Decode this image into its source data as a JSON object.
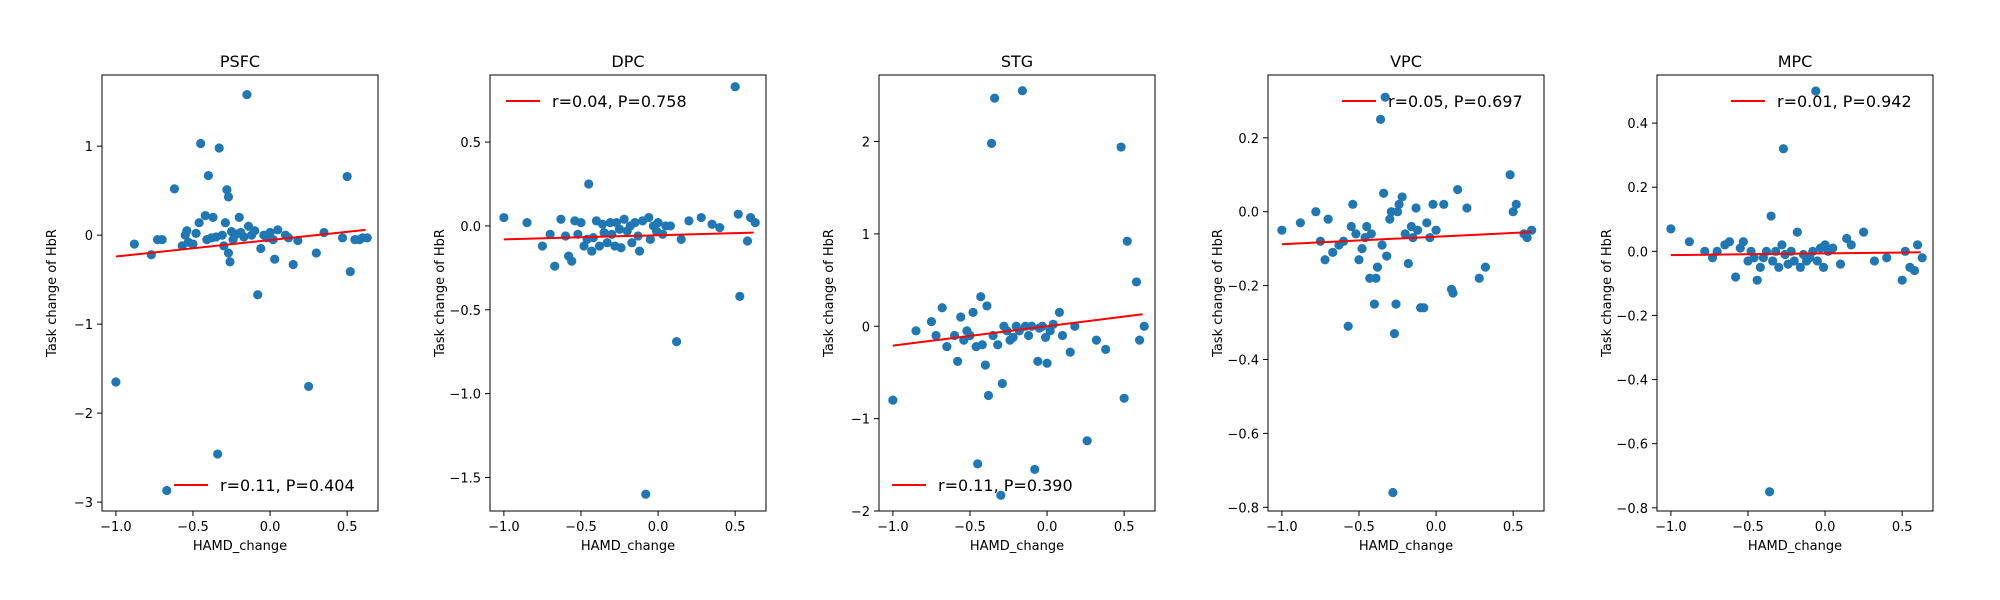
{
  "chart_data": [
    {
      "type": "scatter",
      "title": "PSFC",
      "xlabel": "HAMD_change",
      "ylabel": "Task change of HbR",
      "xlim": [
        -1.09,
        0.7
      ],
      "ylim": [
        -3.1,
        1.8
      ],
      "xticks": [
        -1.0,
        -0.5,
        0.0,
        0.5
      ],
      "xtick_labels": [
        "−1.0",
        "−0.5",
        "0.0",
        "0.5"
      ],
      "yticks": [
        -3,
        -2,
        -1,
        0,
        1
      ],
      "ytick_labels": [
        "−3",
        "−2",
        "−1",
        "0",
        "1"
      ],
      "legend": {
        "label": "r=0.11, P=0.404",
        "position": "lower right"
      },
      "fit": {
        "x": [
          -1.0,
          0.62
        ],
        "y": [
          -0.24,
          0.06
        ]
      },
      "points": [
        [
          -1.0,
          -1.65
        ],
        [
          -0.88,
          -0.1
        ],
        [
          -0.77,
          -0.22
        ],
        [
          -0.73,
          -0.05
        ],
        [
          -0.7,
          -0.05
        ],
        [
          -0.67,
          -2.87
        ],
        [
          -0.62,
          0.52
        ],
        [
          -0.57,
          -0.12
        ],
        [
          -0.55,
          0.0
        ],
        [
          -0.54,
          0.05
        ],
        [
          -0.53,
          -0.08
        ],
        [
          -0.5,
          -0.1
        ],
        [
          -0.48,
          0.02
        ],
        [
          -0.46,
          0.14
        ],
        [
          -0.45,
          1.03
        ],
        [
          -0.42,
          0.22
        ],
        [
          -0.41,
          -0.05
        ],
        [
          -0.4,
          0.67
        ],
        [
          -0.38,
          -0.03
        ],
        [
          -0.37,
          0.2
        ],
        [
          -0.35,
          -0.02
        ],
        [
          -0.34,
          -2.46
        ],
        [
          -0.33,
          0.98
        ],
        [
          -0.31,
          0.0
        ],
        [
          -0.3,
          -0.12
        ],
        [
          -0.29,
          0.14
        ],
        [
          -0.28,
          0.51
        ],
        [
          -0.27,
          0.43
        ],
        [
          -0.27,
          -0.2
        ],
        [
          -0.26,
          -0.3
        ],
        [
          -0.25,
          0.04
        ],
        [
          -0.24,
          -0.05
        ],
        [
          -0.22,
          0.01
        ],
        [
          -0.2,
          0.2
        ],
        [
          -0.19,
          0.03
        ],
        [
          -0.17,
          -0.02
        ],
        [
          -0.15,
          1.58
        ],
        [
          -0.14,
          0.1
        ],
        [
          -0.12,
          0.0
        ],
        [
          -0.1,
          0.05
        ],
        [
          -0.08,
          -0.67
        ],
        [
          -0.06,
          -0.15
        ],
        [
          -0.04,
          0.0
        ],
        [
          -0.02,
          -0.03
        ],
        [
          0.0,
          0.03
        ],
        [
          0.02,
          -0.05
        ],
        [
          0.03,
          -0.27
        ],
        [
          0.05,
          0.06
        ],
        [
          0.1,
          0.0
        ],
        [
          0.12,
          -0.03
        ],
        [
          0.15,
          -0.33
        ],
        [
          0.18,
          -0.06
        ],
        [
          0.25,
          -1.7
        ],
        [
          0.3,
          -0.2
        ],
        [
          0.35,
          0.03
        ],
        [
          0.47,
          -0.03
        ],
        [
          0.5,
          0.66
        ],
        [
          0.52,
          -0.41
        ],
        [
          0.55,
          -0.05
        ],
        [
          0.58,
          -0.05
        ],
        [
          0.6,
          -0.03
        ],
        [
          0.63,
          -0.03
        ]
      ]
    },
    {
      "type": "scatter",
      "title": "DPC",
      "xlabel": "HAMD_change",
      "ylabel": "Task change of HbR",
      "xlim": [
        -1.09,
        0.7
      ],
      "ylim": [
        -1.7,
        0.9
      ],
      "xticks": [
        -1.0,
        -0.5,
        0.0,
        0.5
      ],
      "xtick_labels": [
        "−1.0",
        "−0.5",
        "0.0",
        "0.5"
      ],
      "yticks": [
        -1.5,
        -1.0,
        -0.5,
        0.0,
        0.5
      ],
      "ytick_labels": [
        "−1.5",
        "−1.0",
        "−0.5",
        "0.0",
        "0.5"
      ],
      "legend": {
        "label": "r=0.04, P=0.758",
        "position": "upper left"
      },
      "fit": {
        "x": [
          -1.0,
          0.62
        ],
        "y": [
          -0.08,
          -0.04
        ]
      },
      "points": [
        [
          -1.0,
          0.05
        ],
        [
          -0.85,
          0.02
        ],
        [
          -0.75,
          -0.12
        ],
        [
          -0.7,
          -0.05
        ],
        [
          -0.67,
          -0.24
        ],
        [
          -0.63,
          0.04
        ],
        [
          -0.6,
          -0.06
        ],
        [
          -0.58,
          -0.18
        ],
        [
          -0.56,
          -0.21
        ],
        [
          -0.54,
          0.03
        ],
        [
          -0.52,
          -0.05
        ],
        [
          -0.5,
          0.02
        ],
        [
          -0.48,
          -0.12
        ],
        [
          -0.46,
          -0.08
        ],
        [
          -0.45,
          0.25
        ],
        [
          -0.43,
          -0.15
        ],
        [
          -0.42,
          -0.07
        ],
        [
          -0.4,
          0.03
        ],
        [
          -0.38,
          -0.12
        ],
        [
          -0.36,
          0.01
        ],
        [
          -0.35,
          -0.04
        ],
        [
          -0.33,
          -0.1
        ],
        [
          -0.31,
          0.02
        ],
        [
          -0.3,
          -0.05
        ],
        [
          -0.28,
          -0.12
        ],
        [
          -0.27,
          0.02
        ],
        [
          -0.25,
          -0.02
        ],
        [
          -0.24,
          -0.13
        ],
        [
          -0.22,
          0.04
        ],
        [
          -0.2,
          -0.03
        ],
        [
          -0.18,
          0.0
        ],
        [
          -0.17,
          -0.1
        ],
        [
          -0.15,
          0.02
        ],
        [
          -0.13,
          -0.06
        ],
        [
          -0.12,
          -0.15
        ],
        [
          -0.1,
          0.03
        ],
        [
          -0.08,
          -1.6
        ],
        [
          -0.06,
          0.05
        ],
        [
          -0.05,
          -0.08
        ],
        [
          -0.03,
          0.0
        ],
        [
          -0.01,
          -0.03
        ],
        [
          0.0,
          0.02
        ],
        [
          0.03,
          -0.05
        ],
        [
          0.05,
          0.0
        ],
        [
          0.08,
          0.0
        ],
        [
          0.12,
          -0.69
        ],
        [
          0.15,
          -0.08
        ],
        [
          0.2,
          0.03
        ],
        [
          0.28,
          0.05
        ],
        [
          0.35,
          0.01
        ],
        [
          0.4,
          -0.01
        ],
        [
          0.5,
          0.83
        ],
        [
          0.52,
          0.07
        ],
        [
          0.53,
          -0.42
        ],
        [
          0.58,
          -0.09
        ],
        [
          0.6,
          0.05
        ],
        [
          0.63,
          0.02
        ]
      ]
    },
    {
      "type": "scatter",
      "title": "STG",
      "xlabel": "HAMD_change",
      "ylabel": "Task change of HbR",
      "xlim": [
        -1.09,
        0.7
      ],
      "ylim": [
        -2.0,
        2.72
      ],
      "xticks": [
        -1.0,
        -0.5,
        0.0,
        0.5
      ],
      "xtick_labels": [
        "−1.0",
        "−0.5",
        "0.0",
        "0.5"
      ],
      "yticks": [
        -2,
        -1,
        0,
        1,
        2
      ],
      "ytick_labels": [
        "−2",
        "−1",
        "0",
        "1",
        "2"
      ],
      "legend": {
        "label": "r=0.11, P=0.390",
        "position": "lower left"
      },
      "fit": {
        "x": [
          -1.0,
          0.62
        ],
        "y": [
          -0.21,
          0.13
        ]
      },
      "points": [
        [
          -1.0,
          -0.8
        ],
        [
          -0.85,
          -0.05
        ],
        [
          -0.75,
          0.05
        ],
        [
          -0.72,
          -0.1
        ],
        [
          -0.68,
          0.2
        ],
        [
          -0.65,
          -0.22
        ],
        [
          -0.6,
          -0.1
        ],
        [
          -0.58,
          -0.38
        ],
        [
          -0.56,
          0.1
        ],
        [
          -0.54,
          -0.15
        ],
        [
          -0.52,
          -0.05
        ],
        [
          -0.5,
          -0.1
        ],
        [
          -0.48,
          0.15
        ],
        [
          -0.46,
          -0.22
        ],
        [
          -0.45,
          -1.49
        ],
        [
          -0.43,
          0.32
        ],
        [
          -0.42,
          -0.2
        ],
        [
          -0.4,
          -0.42
        ],
        [
          -0.39,
          0.22
        ],
        [
          -0.38,
          -0.75
        ],
        [
          -0.36,
          1.98
        ],
        [
          -0.35,
          -0.1
        ],
        [
          -0.34,
          2.47
        ],
        [
          -0.32,
          -0.2
        ],
        [
          -0.3,
          -1.83
        ],
        [
          -0.29,
          -0.62
        ],
        [
          -0.28,
          0.0
        ],
        [
          -0.26,
          -0.05
        ],
        [
          -0.24,
          -0.15
        ],
        [
          -0.22,
          -0.12
        ],
        [
          -0.2,
          0.0
        ],
        [
          -0.18,
          -0.05
        ],
        [
          -0.16,
          2.55
        ],
        [
          -0.14,
          0.0
        ],
        [
          -0.12,
          -0.1
        ],
        [
          -0.1,
          0.0
        ],
        [
          -0.08,
          -1.55
        ],
        [
          -0.06,
          -0.38
        ],
        [
          -0.05,
          -0.02
        ],
        [
          -0.03,
          0.0
        ],
        [
          -0.01,
          -0.12
        ],
        [
          0.0,
          -0.4
        ],
        [
          0.02,
          -0.05
        ],
        [
          0.04,
          0.02
        ],
        [
          0.08,
          0.15
        ],
        [
          0.1,
          -0.1
        ],
        [
          0.15,
          -0.28
        ],
        [
          0.18,
          0.0
        ],
        [
          0.26,
          -1.24
        ],
        [
          0.32,
          -0.15
        ],
        [
          0.38,
          -0.25
        ],
        [
          0.48,
          1.94
        ],
        [
          0.5,
          -0.78
        ],
        [
          0.52,
          0.92
        ],
        [
          0.58,
          0.48
        ],
        [
          0.6,
          -0.15
        ],
        [
          0.63,
          0.0
        ]
      ]
    },
    {
      "type": "scatter",
      "title": "VPC",
      "xlabel": "HAMD_change",
      "ylabel": "Task change of HbR",
      "xlim": [
        -1.09,
        0.7
      ],
      "ylim": [
        -0.81,
        0.37
      ],
      "xticks": [
        -1.0,
        -0.5,
        0.0,
        0.5
      ],
      "xtick_labels": [
        "−1.0",
        "−0.5",
        "0.0",
        "0.5"
      ],
      "yticks": [
        -0.8,
        -0.6,
        -0.4,
        -0.2,
        0.0,
        0.2
      ],
      "ytick_labels": [
        "−0.8",
        "−0.6",
        "−0.4",
        "−0.2",
        "0.0",
        "0.2"
      ],
      "legend": {
        "label": "r=0.05, P=0.697",
        "position": "upper right"
      },
      "fit": {
        "x": [
          -1.0,
          0.62
        ],
        "y": [
          -0.088,
          -0.055
        ]
      },
      "points": [
        [
          -1.0,
          -0.05
        ],
        [
          -0.88,
          -0.03
        ],
        [
          -0.78,
          0.0
        ],
        [
          -0.75,
          -0.08
        ],
        [
          -0.72,
          -0.13
        ],
        [
          -0.7,
          -0.02
        ],
        [
          -0.67,
          -0.11
        ],
        [
          -0.63,
          -0.09
        ],
        [
          -0.6,
          -0.08
        ],
        [
          -0.57,
          -0.31
        ],
        [
          -0.55,
          -0.04
        ],
        [
          -0.54,
          0.02
        ],
        [
          -0.52,
          -0.06
        ],
        [
          -0.5,
          -0.13
        ],
        [
          -0.48,
          -0.1
        ],
        [
          -0.46,
          -0.07
        ],
        [
          -0.45,
          -0.04
        ],
        [
          -0.43,
          -0.18
        ],
        [
          -0.42,
          -0.06
        ],
        [
          -0.4,
          -0.25
        ],
        [
          -0.39,
          -0.18
        ],
        [
          -0.38,
          -0.15
        ],
        [
          -0.36,
          0.25
        ],
        [
          -0.35,
          -0.09
        ],
        [
          -0.34,
          0.05
        ],
        [
          -0.33,
          0.31
        ],
        [
          -0.32,
          -0.12
        ],
        [
          -0.3,
          -0.02
        ],
        [
          -0.29,
          0.0
        ],
        [
          -0.28,
          -0.76
        ],
        [
          -0.27,
          -0.33
        ],
        [
          -0.26,
          -0.25
        ],
        [
          -0.25,
          0.0
        ],
        [
          -0.24,
          0.02
        ],
        [
          -0.22,
          0.04
        ],
        [
          -0.2,
          -0.06
        ],
        [
          -0.18,
          -0.14
        ],
        [
          -0.16,
          -0.04
        ],
        [
          -0.15,
          -0.07
        ],
        [
          -0.13,
          0.01
        ],
        [
          -0.12,
          -0.05
        ],
        [
          -0.1,
          -0.26
        ],
        [
          -0.08,
          -0.26
        ],
        [
          -0.06,
          -0.03
        ],
        [
          -0.04,
          -0.07
        ],
        [
          -0.02,
          0.02
        ],
        [
          0.0,
          -0.05
        ],
        [
          0.05,
          0.02
        ],
        [
          0.1,
          -0.21
        ],
        [
          0.11,
          -0.22
        ],
        [
          0.14,
          0.06
        ],
        [
          0.2,
          0.01
        ],
        [
          0.28,
          -0.18
        ],
        [
          0.32,
          -0.15
        ],
        [
          0.48,
          0.1
        ],
        [
          0.5,
          0.0
        ],
        [
          0.52,
          0.02
        ],
        [
          0.57,
          -0.06
        ],
        [
          0.59,
          -0.07
        ],
        [
          0.62,
          -0.05
        ]
      ]
    },
    {
      "type": "scatter",
      "title": "MPC",
      "xlabel": "HAMD_change",
      "ylabel": "Task change of HbR",
      "xlim": [
        -1.09,
        0.7
      ],
      "ylim": [
        -0.81,
        0.55
      ],
      "xticks": [
        -1.0,
        -0.5,
        0.0,
        0.5
      ],
      "xtick_labels": [
        "−1.0",
        "−0.5",
        "0.0",
        "0.5"
      ],
      "yticks": [
        -0.8,
        -0.6,
        -0.4,
        -0.2,
        0.0,
        0.2,
        0.4
      ],
      "ytick_labels": [
        "−0.8",
        "−0.6",
        "−0.4",
        "−0.2",
        "0.0",
        "0.2",
        "0.4"
      ],
      "legend": {
        "label": "r=0.01, P=0.942",
        "position": "upper right"
      },
      "fit": {
        "x": [
          -1.0,
          0.62
        ],
        "y": [
          -0.012,
          -0.003
        ]
      },
      "points": [
        [
          -1.0,
          0.07
        ],
        [
          -0.88,
          0.03
        ],
        [
          -0.78,
          0.0
        ],
        [
          -0.73,
          -0.02
        ],
        [
          -0.7,
          0.0
        ],
        [
          -0.65,
          0.02
        ],
        [
          -0.62,
          0.03
        ],
        [
          -0.58,
          -0.08
        ],
        [
          -0.55,
          0.01
        ],
        [
          -0.53,
          0.03
        ],
        [
          -0.5,
          -0.03
        ],
        [
          -0.48,
          0.0
        ],
        [
          -0.46,
          -0.02
        ],
        [
          -0.44,
          -0.09
        ],
        [
          -0.42,
          -0.05
        ],
        [
          -0.4,
          -0.02
        ],
        [
          -0.38,
          0.0
        ],
        [
          -0.36,
          -0.75
        ],
        [
          -0.35,
          0.11
        ],
        [
          -0.34,
          -0.03
        ],
        [
          -0.32,
          0.0
        ],
        [
          -0.3,
          -0.05
        ],
        [
          -0.28,
          0.02
        ],
        [
          -0.27,
          0.32
        ],
        [
          -0.26,
          -0.01
        ],
        [
          -0.24,
          -0.04
        ],
        [
          -0.22,
          0.0
        ],
        [
          -0.2,
          -0.03
        ],
        [
          -0.18,
          0.06
        ],
        [
          -0.16,
          -0.05
        ],
        [
          -0.14,
          -0.01
        ],
        [
          -0.12,
          -0.03
        ],
        [
          -0.1,
          -0.02
        ],
        [
          -0.08,
          0.0
        ],
        [
          -0.06,
          0.5
        ],
        [
          -0.05,
          -0.03
        ],
        [
          -0.03,
          0.01
        ],
        [
          -0.01,
          -0.05
        ],
        [
          0.0,
          0.02
        ],
        [
          0.02,
          0.0
        ],
        [
          0.05,
          0.01
        ],
        [
          0.1,
          -0.04
        ],
        [
          0.14,
          0.04
        ],
        [
          0.17,
          0.02
        ],
        [
          0.25,
          0.06
        ],
        [
          0.32,
          -0.03
        ],
        [
          0.4,
          -0.02
        ],
        [
          0.5,
          -0.09
        ],
        [
          0.52,
          0.0
        ],
        [
          0.55,
          -0.05
        ],
        [
          0.58,
          -0.06
        ],
        [
          0.6,
          0.02
        ],
        [
          0.63,
          -0.02
        ]
      ]
    }
  ],
  "colors": {
    "point": "#1f77b4",
    "fit_line": "#ff0000",
    "axes": "#000000"
  }
}
